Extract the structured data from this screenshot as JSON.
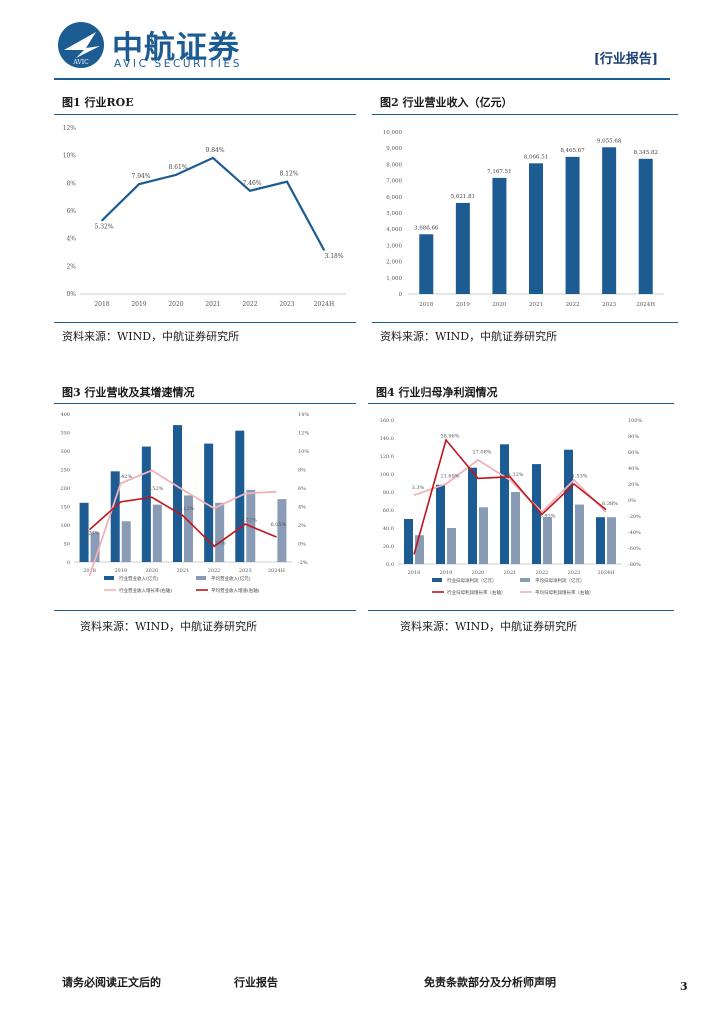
{
  "header": {
    "logo_cn": "中航证券",
    "logo_en": "AVIC SECURITIES",
    "logo_mark": "AVIC",
    "report_type": "[行业报告]"
  },
  "figures": [
    {
      "title": "图1  行业ROE",
      "source": "资料来源：WIND，中航证券研究所"
    },
    {
      "title": "图2  行业营业收入（亿元）",
      "source": "资料来源：WIND，中航证券研究所"
    },
    {
      "title": "图3  行业营收及其增速情况",
      "source": "资料来源：WIND，中航证券研究所"
    },
    {
      "title": "图4  行业归母净利润情况",
      "source": "资料来源：WIND，中航证券研究所"
    }
  ],
  "footer": {
    "left": "请务必阅读正文后的",
    "mid": "行业报告",
    "right": "免责条款部分及分析师声明",
    "page": "3"
  },
  "colors": {
    "navy": "#1c5c93",
    "grey": "#8a9bb5",
    "red": "#c0161d",
    "pink": "#f0b2b9"
  },
  "chart_data": [
    {
      "type": "line",
      "x": [
        "2018",
        "2019",
        "2020",
        "2021",
        "2022",
        "2023",
        "2024H"
      ],
      "series": [
        {
          "values": [
            5.32,
            7.94,
            8.61,
            9.84,
            7.46,
            8.12,
            3.18
          ]
        }
      ],
      "data_labels": [
        "5.32%",
        "7.94%",
        "8.61%",
        "9.84%",
        "7.46%",
        "8.12%",
        "3.18%"
      ],
      "y_ticks": [
        "0%",
        "2%",
        "4%",
        "6%",
        "8%",
        "10%",
        "12%"
      ],
      "ylim": [
        0,
        12
      ]
    },
    {
      "type": "bar",
      "categories": [
        "2018",
        "2019",
        "2020",
        "2021",
        "2022",
        "2023",
        "2024H"
      ],
      "values": [
        3686.66,
        5621.81,
        7167.51,
        8066.51,
        8465.67,
        9055.68,
        8345.82
      ],
      "data_labels": [
        "3,686.66",
        "5,621.81",
        "7,167.51",
        "8,066.51",
        "8,465.67",
        "9,055.68",
        "8,345.82"
      ],
      "y_ticks": [
        "0",
        "1,000",
        "2,000",
        "3,000",
        "4,000",
        "5,000",
        "6,000",
        "7,000",
        "8,000",
        "9,000",
        "10,000"
      ],
      "ylim": [
        0,
        10000
      ]
    },
    {
      "type": "bar",
      "categories": [
        "2018",
        "2019",
        "2020",
        "2021",
        "2022",
        "2023",
        "2024H"
      ],
      "series": [
        {
          "name": "行业营业收入(亿元)",
          "values": [
            160,
            245,
            312,
            370,
            320,
            355,
            0
          ]
        },
        {
          "name": "平均营业收入(亿元)",
          "values": [
            80,
            110,
            155,
            180,
            160,
            195,
            170
          ]
        },
        {
          "name": "行业营业收入增长率(右轴)",
          "values": [
            -3.5,
            6.5,
            7.9,
            5.8,
            3.8,
            5.4,
            5.6
          ]
        },
        {
          "name": "平均营业收入增速(右轴)",
          "values": [
            1.5,
            4.5,
            5.0,
            3.0,
            -0.3,
            2.1,
            0.7
          ]
        }
      ],
      "data_labels": [
        "31.42%",
        "37.52%",
        "31.12%",
        "11.33%",
        "21.32%",
        "1.27%",
        "6.05%"
      ],
      "y_ticks": [
        "0",
        "50",
        "100",
        "150",
        "200",
        "250",
        "300",
        "350",
        "400"
      ],
      "y2_ticks": [
        "-2%",
        "0%",
        "2%",
        "4%",
        "6%",
        "8%",
        "10%",
        "12%",
        "14%"
      ],
      "ylim": [
        0,
        400
      ]
    },
    {
      "type": "bar",
      "categories": [
        "2018",
        "2019",
        "2020",
        "2021",
        "2022",
        "2023",
        "2024H"
      ],
      "series": [
        {
          "name": "行业归母净利润（亿元）",
          "values": [
            50,
            88,
            107,
            133,
            111,
            127,
            52
          ]
        },
        {
          "name": "平均归母净利润（亿元）",
          "values": [
            32,
            40,
            63,
            80,
            52,
            66,
            52
          ]
        },
        {
          "name": "行业归母利润增长率（右轴）",
          "values": [
            -68,
            75,
            27,
            29,
            -18,
            20,
            -12
          ]
        },
        {
          "name": "平均归母利润增长率（右轴）",
          "values": [
            6,
            20,
            50,
            25,
            -15,
            25,
            -15
          ]
        }
      ],
      "data_labels": [
        "38.96%",
        "21.69%",
        "27.08%",
        "21.32%",
        "18.92%",
        "11.53%",
        "3.3%",
        "6.38%"
      ],
      "y_ticks": [
        "0.0",
        "20.0",
        "40.0",
        "60.0",
        "80.0",
        "100.0",
        "120.0",
        "140.0",
        "160.0"
      ],
      "y2_ticks": [
        "-80%",
        "-60%",
        "-40%",
        "-20%",
        "0%",
        "20%",
        "40%",
        "60%",
        "80%",
        "100%"
      ],
      "ylim": [
        0,
        160
      ]
    }
  ]
}
